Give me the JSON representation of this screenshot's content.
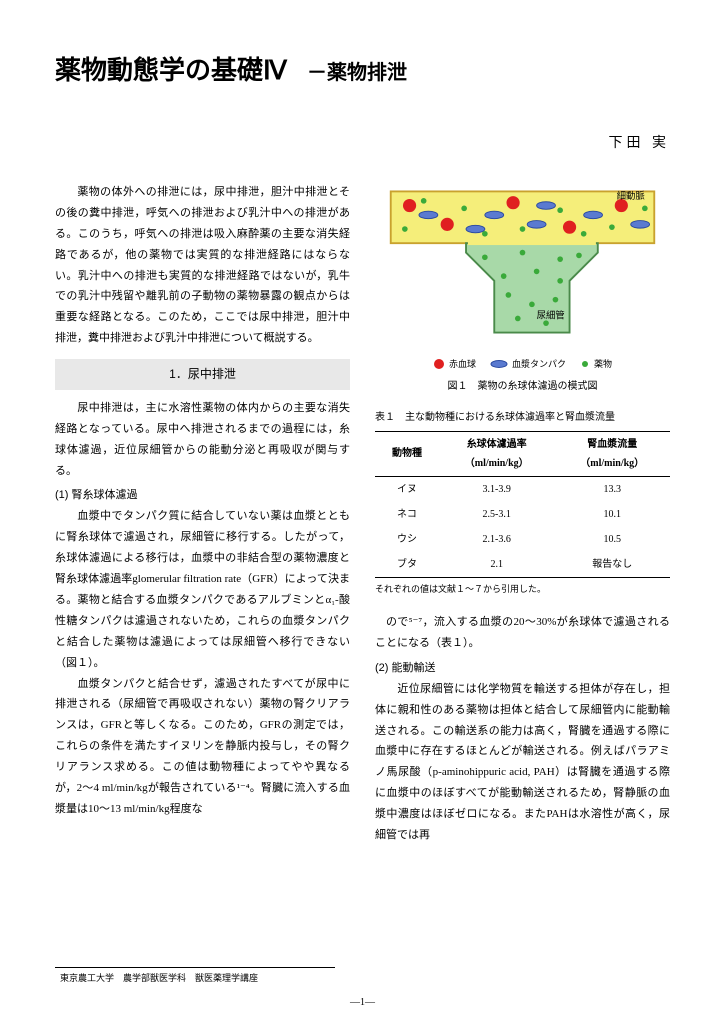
{
  "title": "薬物動態学の基礎Ⅳ",
  "subtitle": "－薬物排泄",
  "author": "下田 実",
  "section1_header": "1．尿中排泄",
  "subsection1": "(1) 腎糸球体濾過",
  "subsection2": "(2) 能動輸送",
  "left_paragraphs": {
    "p1": "　薬物の体外への排泄には，尿中排泄，胆汁中排泄とその後の糞中排泄，呼気への排泄および乳汁中への排泄がある。このうち，呼気への排泄は吸入麻酔薬の主要な消失経路であるが，他の薬物では実質的な排泄経路にはならない。乳汁中への排泄も実質的な排泄経路ではないが，乳牛での乳汁中残留や離乳前の子動物の薬物暴露の観点からは重要な経路となる。このため，ここでは尿中排泄，胆汁中排泄，糞中排泄および乳汁中排泄について概説する。",
    "p2": "　尿中排泄は，主に水溶性薬物の体内からの主要な消失経路となっている。尿中へ排泄されるまでの過程には，糸球体濾過，近位尿細管からの能動分泌と再吸収が関与する。",
    "p3": "　血漿中でタンパク質に結合していない薬は血漿とともに腎糸球体で濾過され，尿細管に移行する。したがって，糸球体濾過による移行は，血漿中の非結合型の薬物濃度と腎糸球体濾過率glomerular filtration rate（GFR）によって決まる。薬物と結合する血漿タンパクであるアルブミンとα₁-酸性糖タンパクは濾過されないため，これらの血漿タンパクと結合した薬物は濾過によっては尿細管へ移行できない（図１）。",
    "p4": "　血漿タンパクと結合せず，濾過されたすべてが尿中に排泄される（尿細管で再吸収されない）薬物の腎クリアランスは，GFRと等しくなる。このため，GFRの測定では，これらの条件を満たすイヌリンを静脈内投与し，その腎クリアランス求める。この値は動物種によってやや異なるが，2～4 ml/min/kgが報告されている¹⁻⁴。腎臓に流入する血漿量は10～13 ml/min/kg程度な"
  },
  "right_paragraphs": {
    "p1": "ので⁵⁻⁷，流入する血漿の20～30%が糸球体で濾過されることになる（表１）。",
    "p2": "　近位尿細管には化学物質を輸送する担体が存在し，担体に親和性のある薬物は担体と結合して尿細管内に能動輸送される。この輸送系の能力は高く，腎臓を通過する際に血漿中に存在するほとんどが輸送される。例えばパラアミノ馬尿酸（p-aminohippuric acid, PAH）は腎臓を通過する際に血漿中のほぼすべてが能動輸送されるため，腎静脈の血漿中濃度はほぼゼロになる。またPAHは水溶性が高く，尿細管では再"
  },
  "figure": {
    "caption": "図１　薬物の糸球体濾過の模式図",
    "label_arteriole": "細動脈",
    "label_tubule": "尿細管",
    "legend": {
      "rbc": "赤血球",
      "protein": "血漿タンパク",
      "drug": "薬物"
    },
    "colors": {
      "vessel_fill": "#f5ee7a",
      "vessel_border": "#c9a22e",
      "tubule_fill": "#a8d9a8",
      "tubule_border": "#4a8a4a",
      "rbc": "#e02020",
      "protein_fill": "#5a7ad0",
      "protein_stroke": "#2a4aa0",
      "drug": "#3aaa3a"
    }
  },
  "table": {
    "caption": "表１　主な動物種における糸球体濾過率と腎血漿流量",
    "columns": [
      "動物種",
      "糸球体濾過率\n（ml/min/kg）",
      "腎血漿流量\n（ml/min/kg）"
    ],
    "rows": [
      [
        "イヌ",
        "3.1-3.9",
        "13.3"
      ],
      [
        "ネコ",
        "2.5-3.1",
        "10.1"
      ],
      [
        "ウシ",
        "2.1-3.6",
        "10.5"
      ],
      [
        "ブタ",
        "2.1",
        "報告なし"
      ]
    ],
    "note": "それぞれの値は文献１～７から引用した。"
  },
  "affiliation": "東京農工大学　農学部獣医学科　獣医薬理学講座",
  "page_number": "―1―"
}
